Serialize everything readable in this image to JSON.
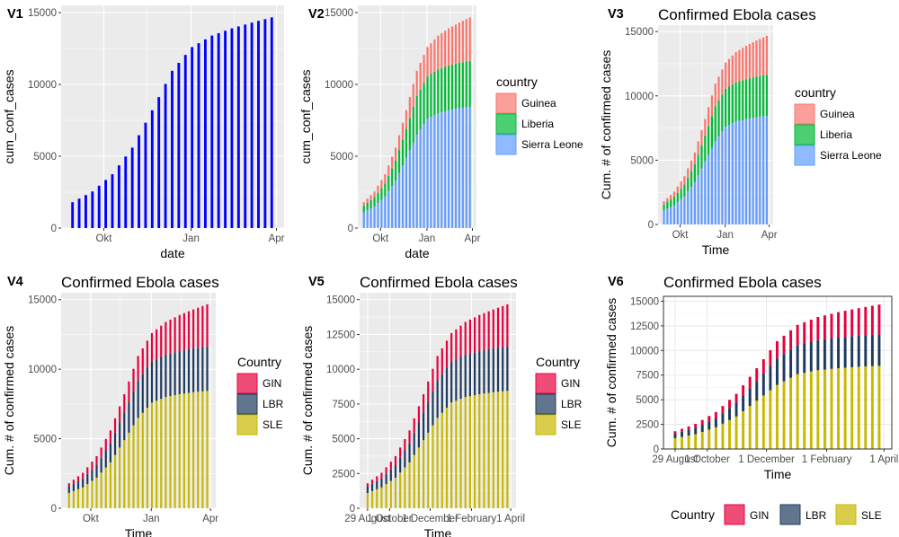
{
  "panels": [
    {
      "tag": "V1",
      "title": "",
      "xlabel": "date",
      "ylabel": "cum_conf_cases",
      "theme": "grey",
      "stacked": false,
      "xticks": [
        "Okt",
        "Jan",
        "Apr"
      ],
      "yticks": [
        "0",
        "5000",
        "10000",
        "15000"
      ],
      "legend": null
    },
    {
      "tag": "V2",
      "title": "",
      "xlabel": "date",
      "ylabel": "cum_conf_cases",
      "theme": "grey",
      "stacked": true,
      "palette": "default",
      "xticks": [
        "Okt",
        "Jan",
        "Apr"
      ],
      "yticks": [
        "0",
        "5000",
        "10000",
        "15000"
      ],
      "legend": {
        "title": "country",
        "position": "right",
        "items": [
          "Guinea",
          "Liberia",
          "Sierra Leone"
        ]
      }
    },
    {
      "tag": "V3",
      "title": "Confirmed Ebola cases",
      "xlabel": "Time",
      "ylabel": "Cum. # of confirmed cases",
      "theme": "grey",
      "stacked": true,
      "palette": "default",
      "xticks": [
        "Okt",
        "Jan",
        "Apr"
      ],
      "yticks": [
        "0",
        "5000",
        "10000",
        "15000"
      ],
      "legend": {
        "title": "country",
        "position": "right",
        "items": [
          "Guinea",
          "Liberia",
          "Sierra Leone"
        ]
      }
    },
    {
      "tag": "V4",
      "title": "Confirmed Ebola cases",
      "xlabel": "Time",
      "ylabel": "Cum. # of confirmed cases",
      "theme": "grey",
      "stacked": true,
      "palette": "custom",
      "xticks": [
        "Okt",
        "Jan",
        "Apr"
      ],
      "yticks": [
        "0",
        "5000",
        "10000",
        "15000"
      ],
      "legend": {
        "title": "Country",
        "position": "right",
        "items": [
          "GIN",
          "LBR",
          "SLE"
        ]
      }
    },
    {
      "tag": "V5",
      "title": "Confirmed Ebola cases",
      "xlabel": "Time",
      "ylabel": "Cum. # of confirmed cases",
      "theme": "grey",
      "stacked": true,
      "palette": "custom",
      "xticks": [
        "29 August",
        "1 October",
        "1 December",
        "1 February",
        "1 April"
      ],
      "yticks": [
        "0",
        "2500",
        "5000",
        "7500",
        "10000",
        "12500",
        "15000"
      ],
      "legend": {
        "title": "Country",
        "position": "right",
        "items": [
          "GIN",
          "LBR",
          "SLE"
        ]
      }
    },
    {
      "tag": "V6",
      "title": "Confirmed Ebola cases",
      "xlabel": "Time",
      "ylabel": "Cum. # of confirmed cases",
      "theme": "bw",
      "stacked": true,
      "palette": "custom",
      "xticks": [
        "29 August",
        "1 October",
        "1 December",
        "1 February",
        "1 April"
      ],
      "yticks": [
        "0",
        "2500",
        "5000",
        "7500",
        "10000",
        "12500",
        "15000"
      ],
      "legend": {
        "title": "Country",
        "position": "bottom",
        "items": [
          "GIN",
          "LBR",
          "SLE"
        ]
      }
    }
  ],
  "colors": {
    "default": [
      "#F8766D",
      "#00BA38",
      "#619CFF"
    ],
    "custom": [
      "#E8003D",
      "#1E3A5F",
      "#C8B900"
    ],
    "v1": "#0000FF"
  },
  "chart_data": {
    "type": "bar",
    "x_start": "2014-08-29",
    "x_end": "2015-03-29",
    "x_domain": [
      "2014-08-17",
      "2015-04-09"
    ],
    "ylim": [
      0,
      15500
    ],
    "series": [
      {
        "name": "Sierra Leone",
        "code": "SLE",
        "x": [
          "2014-08-29",
          "2014-09-19",
          "2014-10-10",
          "2014-10-31",
          "2014-11-21",
          "2014-12-12",
          "2015-01-02",
          "2015-01-23",
          "2015-02-13",
          "2015-03-06",
          "2015-03-29"
        ],
        "values": [
          1100,
          1500,
          2200,
          3300,
          4900,
          6500,
          7600,
          8000,
          8200,
          8350,
          8450
        ]
      },
      {
        "name": "Liberia",
        "code": "LBR",
        "x": [
          "2014-08-29",
          "2014-09-19",
          "2014-10-10",
          "2014-10-31",
          "2014-11-21",
          "2014-12-12",
          "2015-01-02",
          "2015-01-23",
          "2015-02-13",
          "2015-03-06",
          "2015-03-29"
        ],
        "values": [
          450,
          650,
          900,
          1400,
          2000,
          2700,
          2950,
          3050,
          3100,
          3150,
          3200
        ]
      },
      {
        "name": "Guinea",
        "code": "GIN",
        "x": [
          "2014-08-29",
          "2014-09-19",
          "2014-10-10",
          "2014-10-31",
          "2014-11-21",
          "2014-12-12",
          "2015-01-02",
          "2015-01-23",
          "2015-02-13",
          "2015-03-06",
          "2015-03-29"
        ],
        "values": [
          250,
          400,
          650,
          900,
          1300,
          1750,
          2050,
          2350,
          2600,
          2800,
          3050
        ]
      }
    ]
  }
}
